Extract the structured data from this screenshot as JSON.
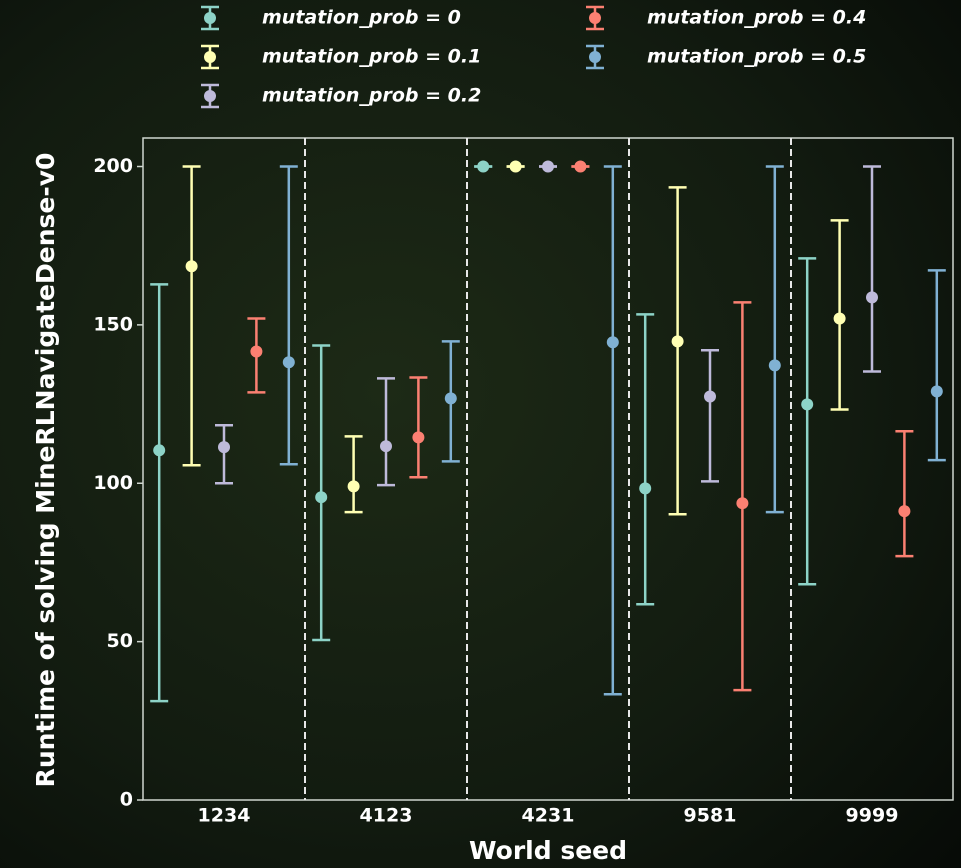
{
  "chart_data": {
    "type": "errorbar",
    "xlabel": "World seed",
    "ylabel": "Runtime of solving MineRLNavigateDense-v0",
    "categories": [
      "1234",
      "4123",
      "4231",
      "9581",
      "9999"
    ],
    "ylim": [
      0,
      209
    ],
    "yticks": [
      0,
      50,
      100,
      150,
      200
    ],
    "separators": true,
    "series": [
      {
        "name": "mutation_prob = 0",
        "color": "#8dd3c7",
        "values": [
          110.4,
          95.6,
          200,
          98.4,
          124.9
        ],
        "lower": [
          31.2,
          50.5,
          200,
          61.8,
          68.1
        ],
        "upper": [
          162.8,
          143.5,
          200,
          153.3,
          171
        ]
      },
      {
        "name": "mutation_prob = 0.1",
        "color": "#ffffb3",
        "values": [
          168.5,
          99,
          200,
          144.8,
          152
        ],
        "lower": [
          105.7,
          90.9,
          200,
          90.2,
          123.3
        ],
        "upper": [
          200,
          114.8,
          200,
          193.4,
          183
        ]
      },
      {
        "name": "mutation_prob = 0.2",
        "color": "#bebada",
        "values": [
          111.4,
          111.7,
          200,
          127.4,
          158.7
        ],
        "lower": [
          100,
          99.4,
          200,
          100.6,
          135.3
        ],
        "upper": [
          118.3,
          133.1,
          200,
          142,
          200
        ]
      },
      {
        "name": "mutation_prob = 0.4",
        "color": "#fb8072",
        "values": [
          141.6,
          114.5,
          200,
          93.7,
          91.2
        ],
        "lower": [
          128.7,
          101.9,
          200,
          34.7,
          77
        ],
        "upper": [
          152,
          133.4,
          200,
          157.1,
          116.4
        ]
      },
      {
        "name": "mutation_prob = 0.5",
        "color": "#80b1d3",
        "values": [
          138.2,
          126.8,
          144.5,
          137.2,
          129
        ],
        "lower": [
          106,
          106.9,
          33.4,
          90.9,
          107.3
        ],
        "upper": [
          200,
          144.8,
          200,
          200,
          167.2
        ]
      }
    ]
  }
}
